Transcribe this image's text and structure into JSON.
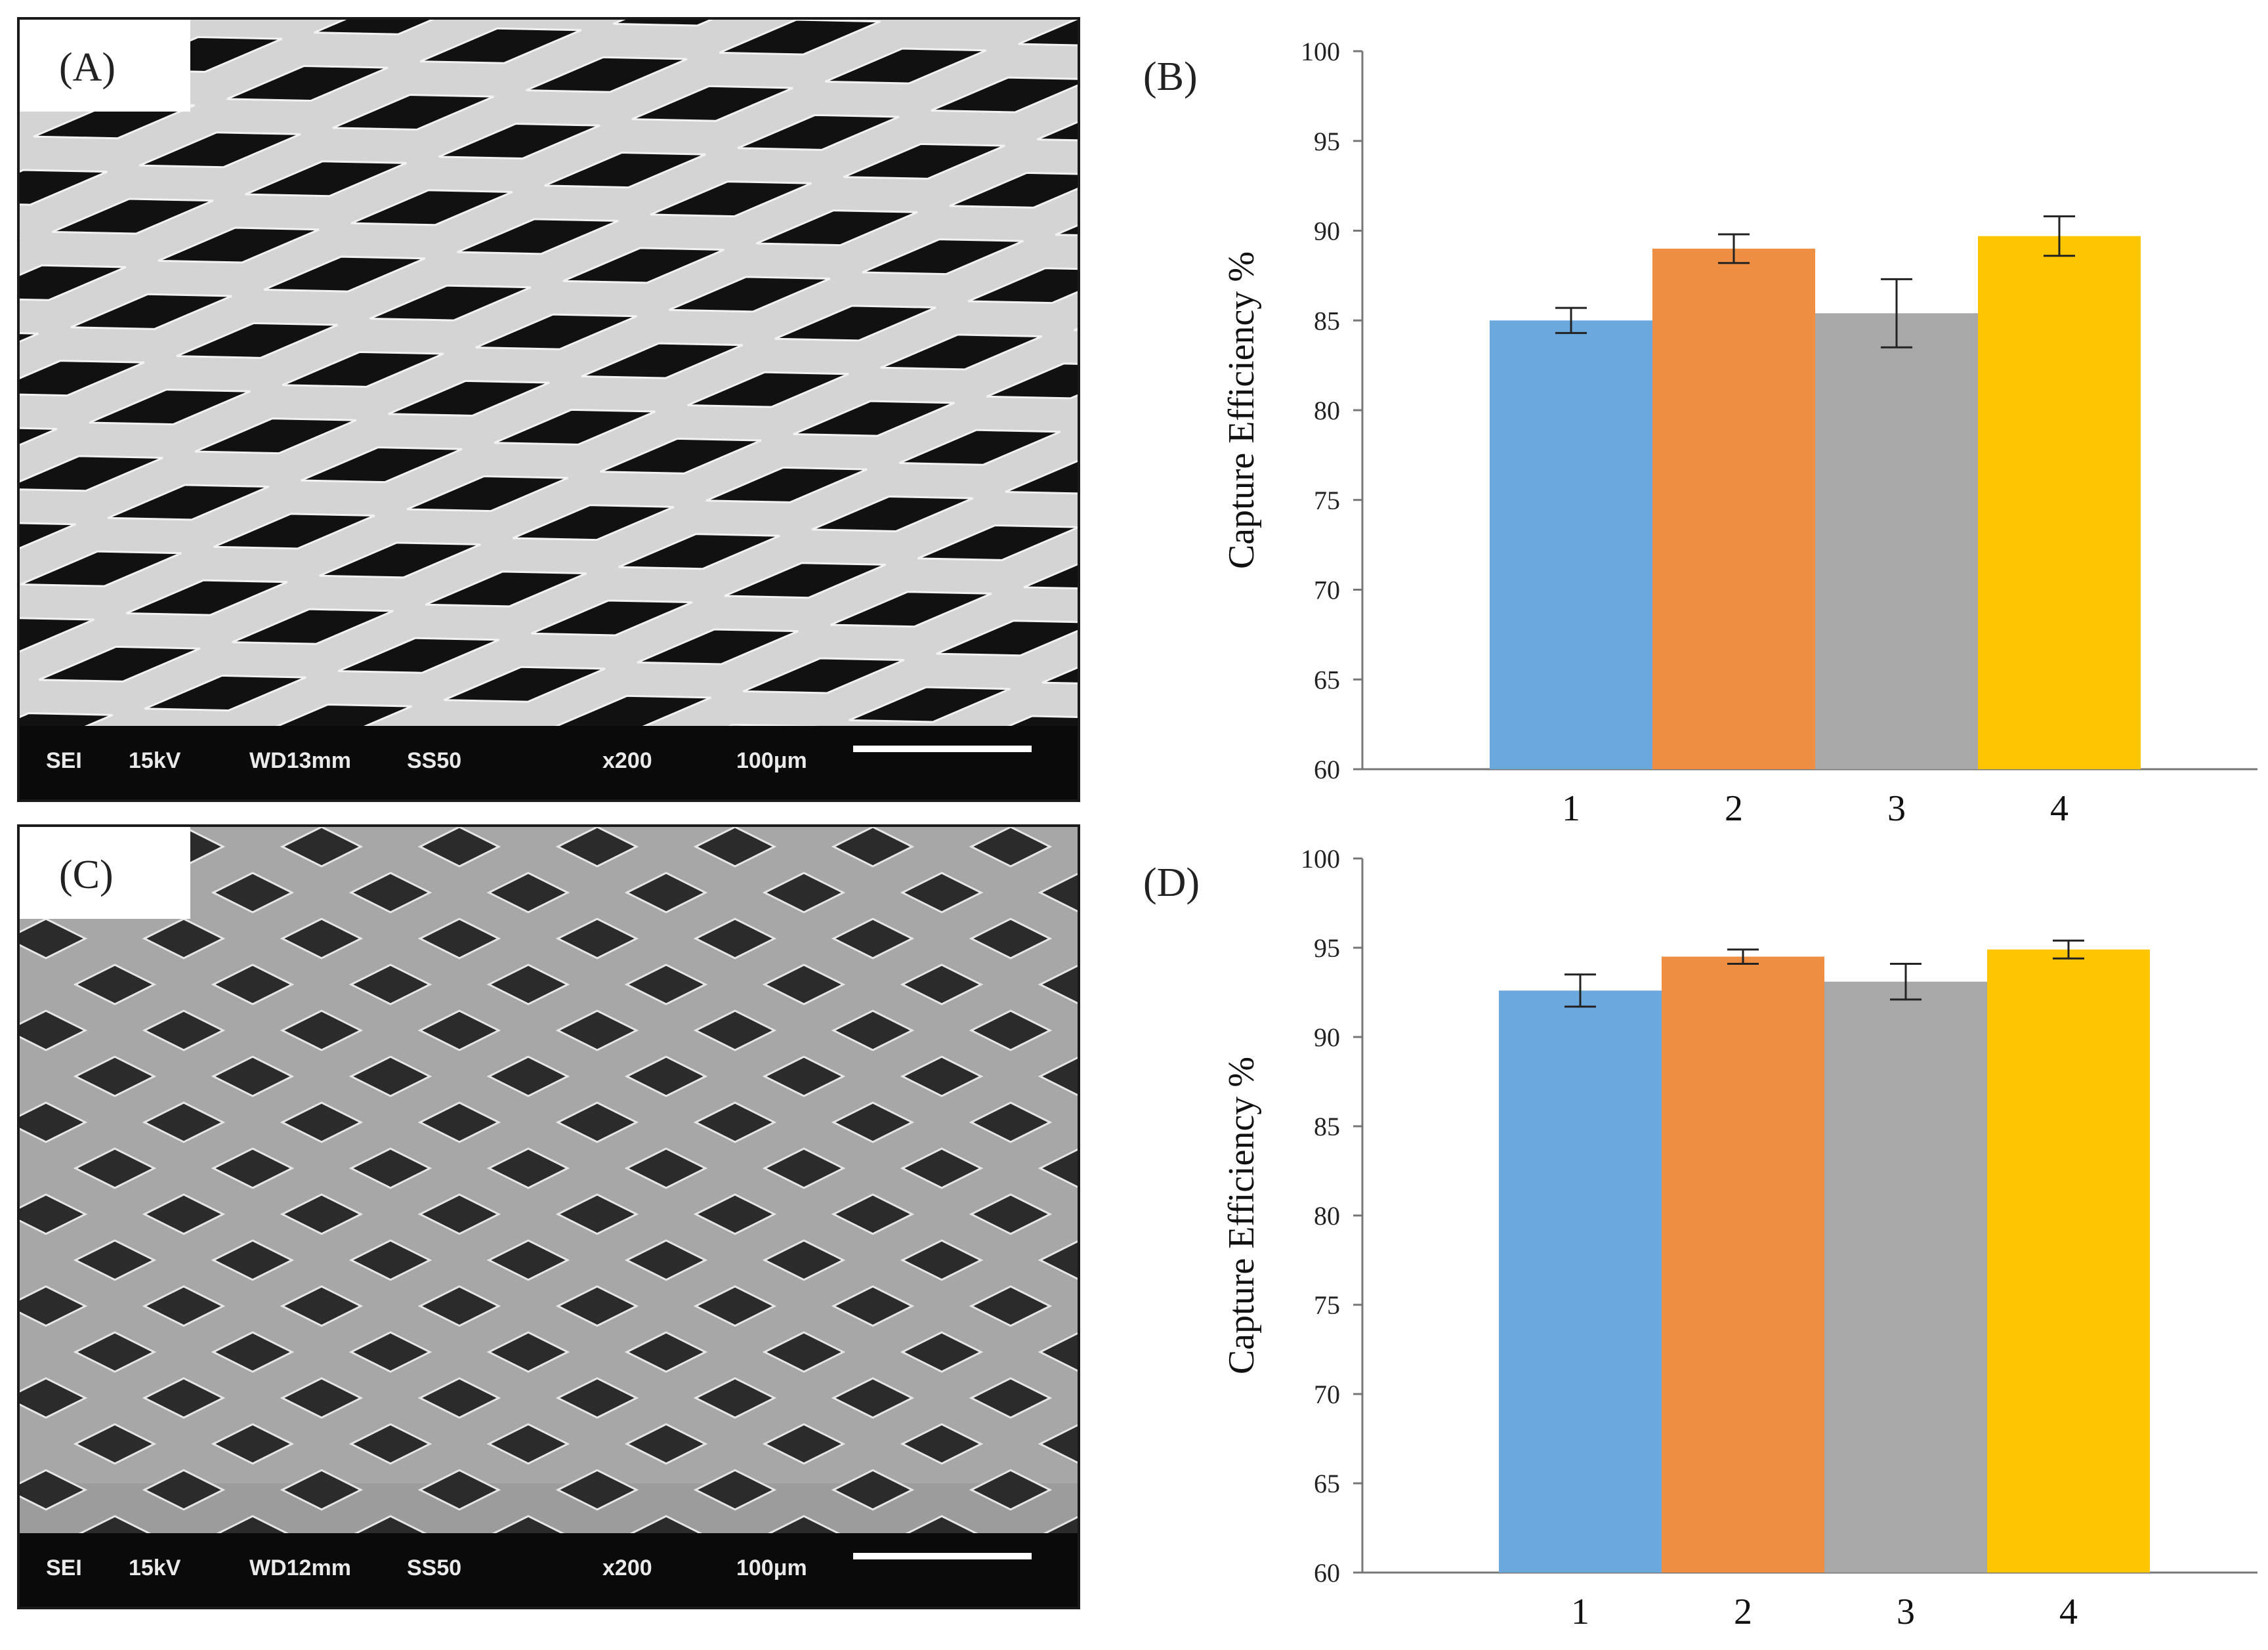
{
  "panels": {
    "a": {
      "label": "(A)",
      "info": {
        "mode": "SEI",
        "kv": "15kV",
        "wd": "WD13mm",
        "ss": "SS50",
        "mag": "x200",
        "scale": "100μm"
      }
    },
    "c": {
      "label": "(C)",
      "info": {
        "mode": "SEI",
        "kv": "15kV",
        "wd": "WD12mm",
        "ss": "SS50",
        "mag": "x200",
        "scale": "100μm"
      }
    }
  },
  "chart_data": [
    {
      "panel_label": "(B)",
      "type": "bar",
      "categories": [
        "1",
        "2",
        "3",
        "4"
      ],
      "values": [
        85.0,
        89.0,
        85.4,
        89.7
      ],
      "errors": [
        0.7,
        0.8,
        1.9,
        1.1
      ],
      "colors": [
        "#6aa8dd",
        "#ee8e42",
        "#a8a8a8",
        "#fec602"
      ],
      "ylabel": "Capture Efficiency %",
      "xlabel": "",
      "ylim": [
        60,
        100
      ],
      "yticks": [
        60,
        65,
        70,
        75,
        80,
        85,
        90,
        95,
        100
      ],
      "grid": false
    },
    {
      "panel_label": "(D)",
      "type": "bar",
      "categories": [
        "1",
        "2",
        "3",
        "4"
      ],
      "values": [
        92.6,
        94.5,
        93.1,
        94.9
      ],
      "errors": [
        0.9,
        0.4,
        1.0,
        0.5
      ],
      "colors": [
        "#6aa8dd",
        "#ee8e42",
        "#a8a8a8",
        "#fec602"
      ],
      "ylabel": "Capture Efficiency %",
      "xlabel": "",
      "ylim": [
        60,
        100
      ],
      "yticks": [
        60,
        65,
        70,
        75,
        80,
        85,
        90,
        95,
        100
      ],
      "grid": false
    }
  ]
}
